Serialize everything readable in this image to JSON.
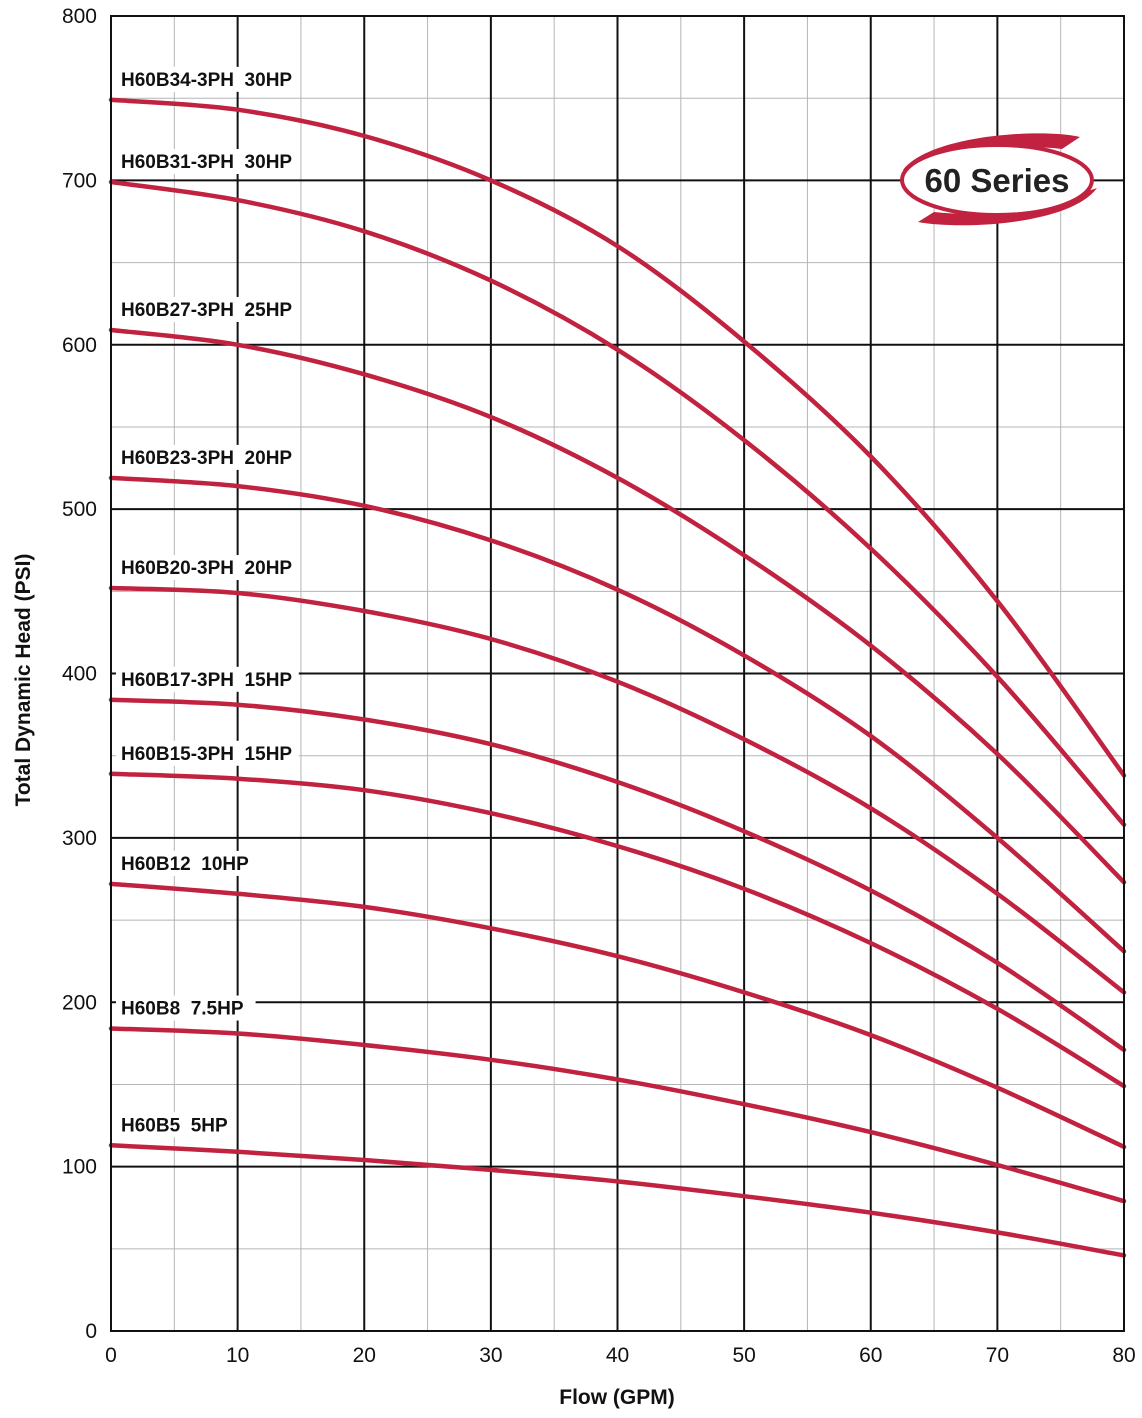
{
  "chart_data": {
    "type": "line",
    "badge": "60 Series",
    "xlabel": "Flow (GPM)",
    "ylabel": "Total Dynamic Head (PSI)",
    "xlim": [
      0,
      80
    ],
    "ylim": [
      0,
      800
    ],
    "x_ticks": [
      "0",
      "10",
      "20",
      "30",
      "40",
      "50",
      "60",
      "70",
      "80"
    ],
    "y_ticks": [
      "0",
      "100",
      "200",
      "300",
      "400",
      "500",
      "600",
      "700",
      "800"
    ],
    "grid": true,
    "colors": {
      "curve": "#c0223f",
      "grid_major": "#111111",
      "grid_minor": "#b5b5b5"
    },
    "x": [
      0,
      10,
      20,
      30,
      40,
      50,
      60,
      70,
      80
    ],
    "series": [
      {
        "name": "H60B34-3PH  30HP",
        "values": [
          749,
          743,
          727,
          700,
          660,
          602,
          532,
          444,
          338
        ]
      },
      {
        "name": "H60B31-3PH  30HP",
        "values": [
          699,
          688,
          669,
          639,
          597,
          542,
          476,
          398,
          308
        ]
      },
      {
        "name": "H60B27-3PH  25HP",
        "values": [
          609,
          600,
          582,
          556,
          519,
          472,
          417,
          351,
          273
        ]
      },
      {
        "name": "H60B23-3PH  20HP",
        "values": [
          519,
          514,
          502,
          481,
          451,
          411,
          362,
          300,
          231
        ]
      },
      {
        "name": "H60B20-3PH  20HP",
        "values": [
          452,
          449,
          438,
          421,
          395,
          360,
          318,
          266,
          206
        ]
      },
      {
        "name": "H60B17-3PH  15HP",
        "values": [
          384,
          381,
          372,
          357,
          334,
          304,
          268,
          224,
          171
        ]
      },
      {
        "name": "H60B15-3PH  15HP",
        "values": [
          339,
          336,
          329,
          315,
          295,
          269,
          236,
          196,
          149
        ]
      },
      {
        "name": "H60B12  10HP",
        "values": [
          272,
          266,
          258,
          245,
          228,
          206,
          180,
          148,
          112
        ]
      },
      {
        "name": "H60B8  7.5HP",
        "values": [
          184,
          181,
          174,
          165,
          153,
          138,
          121,
          101,
          79
        ]
      },
      {
        "name": "H60B5  5HP",
        "values": [
          113,
          109,
          104,
          98,
          91,
          82,
          72,
          60,
          46
        ]
      }
    ]
  }
}
